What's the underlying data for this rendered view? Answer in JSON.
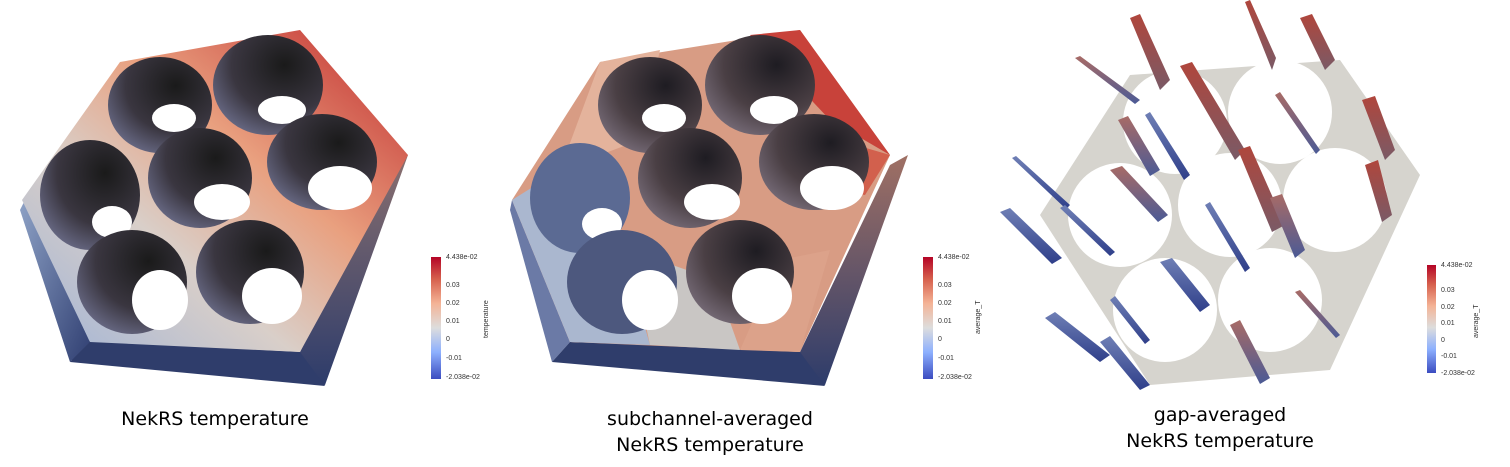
{
  "panels": [
    {
      "caption_lines": [
        "NekRS temperature"
      ],
      "colorbar": {
        "title": "temperature",
        "max_label": "4.438e-02",
        "min_label": "-2.038e-02",
        "ticks": [
          "0.03",
          "0.02",
          "0.01",
          "0",
          "-0.01"
        ]
      }
    },
    {
      "caption_lines": [
        "subchannel-averaged",
        "NekRS temperature"
      ],
      "colorbar": {
        "title": "average_T",
        "max_label": "4.438e-02",
        "min_label": "-2.038e-02",
        "ticks": [
          "0.03",
          "0.02",
          "0.01",
          "0",
          "-0.01"
        ]
      }
    },
    {
      "caption_lines": [
        "gap-averaged",
        "NekRS temperature"
      ],
      "colorbar": {
        "title": "average_T",
        "max_label": "4.438e-02",
        "min_label": "-2.038e-02",
        "ticks": [
          "0.03",
          "0.02",
          "0.01",
          "0",
          "-0.01"
        ]
      }
    }
  ],
  "colormap": {
    "low": "#3b4cc0",
    "mid": "#dddddd",
    "high": "#b40426"
  }
}
